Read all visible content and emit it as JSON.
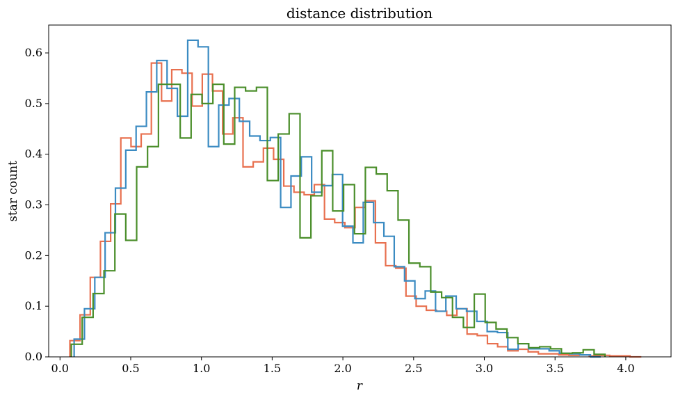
{
  "chart_data": {
    "type": "histogram",
    "title": "distance distribution",
    "xlabel": "r",
    "ylabel": "star count",
    "xlim": [
      -0.08,
      4.32
    ],
    "ylim": [
      0.0,
      0.655
    ],
    "xticks": [
      0.0,
      0.5,
      1.0,
      1.5,
      2.0,
      2.5,
      3.0,
      3.5,
      4.0
    ],
    "xtick_labels": [
      "0.0",
      "0.5",
      "1.0",
      "1.5",
      "2.0",
      "2.5",
      "3.0",
      "3.5",
      "4.0"
    ],
    "yticks": [
      0.0,
      0.1,
      0.2,
      0.3,
      0.4,
      0.5,
      0.6
    ],
    "ytick_labels": [
      "0.0",
      "0.1",
      "0.2",
      "0.3",
      "0.4",
      "0.5",
      "0.6"
    ],
    "grid": false,
    "legend": "none",
    "series": [
      {
        "color": "#e8704f",
        "edges": [
          0.07,
          0.142,
          0.214,
          0.286,
          0.358,
          0.43,
          0.502,
          0.574,
          0.646,
          0.718,
          0.79,
          0.862,
          0.934,
          1.006,
          1.078,
          1.15,
          1.222,
          1.294,
          1.366,
          1.438,
          1.51,
          1.582,
          1.654,
          1.726,
          1.798,
          1.87,
          1.942,
          2.014,
          2.086,
          2.158,
          2.23,
          2.302,
          2.374,
          2.446,
          2.518,
          2.59,
          2.662,
          2.734,
          2.806,
          2.878,
          2.95,
          3.022,
          3.094,
          3.166,
          3.238,
          3.31,
          3.382,
          3.454,
          3.526,
          3.598,
          3.67,
          3.742,
          3.814,
          3.886,
          3.958,
          4.03,
          4.11
        ],
        "values": [
          0.032,
          0.083,
          0.157,
          0.228,
          0.302,
          0.432,
          0.415,
          0.44,
          0.58,
          0.505,
          0.567,
          0.56,
          0.495,
          0.558,
          0.525,
          0.44,
          0.472,
          0.375,
          0.385,
          0.412,
          0.39,
          0.337,
          0.325,
          0.32,
          0.34,
          0.272,
          0.265,
          0.255,
          0.295,
          0.308,
          0.225,
          0.18,
          0.175,
          0.12,
          0.1,
          0.092,
          0.09,
          0.082,
          0.095,
          0.045,
          0.042,
          0.026,
          0.02,
          0.012,
          0.015,
          0.01,
          0.006,
          0.006,
          0.004,
          0.003,
          0.004,
          0.002,
          0.003,
          0.002,
          0.002,
          0.0
        ]
      },
      {
        "color": "#3b8bc2",
        "edges": [
          0.1,
          0.173,
          0.246,
          0.319,
          0.392,
          0.465,
          0.538,
          0.611,
          0.684,
          0.757,
          0.83,
          0.903,
          0.976,
          1.049,
          1.122,
          1.195,
          1.268,
          1.341,
          1.414,
          1.487,
          1.56,
          1.633,
          1.706,
          1.779,
          1.852,
          1.925,
          1.998,
          2.071,
          2.144,
          2.217,
          2.29,
          2.363,
          2.436,
          2.509,
          2.582,
          2.655,
          2.728,
          2.801,
          2.874,
          2.947,
          3.02,
          3.093,
          3.166,
          3.239,
          3.312,
          3.385,
          3.458,
          3.531,
          3.604,
          3.677,
          3.75,
          3.823
        ],
        "values": [
          0.035,
          0.095,
          0.157,
          0.245,
          0.333,
          0.408,
          0.455,
          0.523,
          0.585,
          0.53,
          0.475,
          0.625,
          0.612,
          0.415,
          0.497,
          0.51,
          0.465,
          0.436,
          0.427,
          0.433,
          0.295,
          0.357,
          0.395,
          0.325,
          0.338,
          0.36,
          0.258,
          0.225,
          0.305,
          0.265,
          0.238,
          0.178,
          0.15,
          0.115,
          0.13,
          0.09,
          0.12,
          0.095,
          0.09,
          0.07,
          0.05,
          0.048,
          0.015,
          0.026,
          0.016,
          0.016,
          0.012,
          0.007,
          0.006,
          0.004,
          0.0
        ]
      },
      {
        "color": "#4a8e2a",
        "edges": [
          0.08,
          0.157,
          0.234,
          0.311,
          0.388,
          0.465,
          0.542,
          0.619,
          0.696,
          0.773,
          0.85,
          0.927,
          1.004,
          1.081,
          1.158,
          1.235,
          1.312,
          1.389,
          1.466,
          1.543,
          1.62,
          1.697,
          1.774,
          1.851,
          1.928,
          2.005,
          2.082,
          2.159,
          2.236,
          2.313,
          2.39,
          2.467,
          2.544,
          2.621,
          2.698,
          2.775,
          2.852,
          2.929,
          3.006,
          3.083,
          3.16,
          3.237,
          3.314,
          3.391,
          3.468,
          3.545,
          3.622,
          3.699,
          3.776,
          3.853
        ],
        "values": [
          0.025,
          0.078,
          0.125,
          0.17,
          0.282,
          0.23,
          0.375,
          0.415,
          0.538,
          0.538,
          0.432,
          0.518,
          0.5,
          0.538,
          0.42,
          0.532,
          0.525,
          0.532,
          0.348,
          0.44,
          0.48,
          0.235,
          0.318,
          0.407,
          0.288,
          0.34,
          0.243,
          0.374,
          0.361,
          0.328,
          0.27,
          0.185,
          0.178,
          0.128,
          0.117,
          0.078,
          0.058,
          0.124,
          0.068,
          0.055,
          0.038,
          0.026,
          0.018,
          0.02,
          0.016,
          0.007,
          0.008,
          0.014,
          0.005
        ]
      }
    ]
  }
}
